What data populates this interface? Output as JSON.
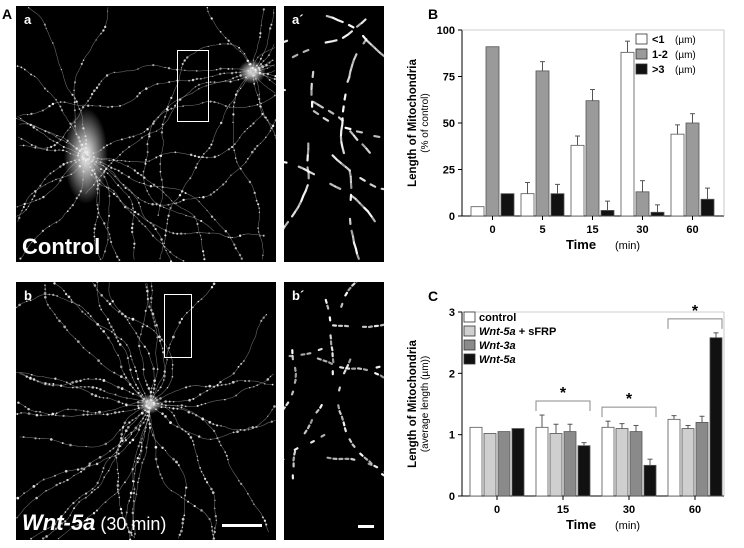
{
  "figure": {
    "panel_A_label": "A",
    "panel_B_label": "B",
    "panel_C_label": "C"
  },
  "micrographs": {
    "a": {
      "letter": "a",
      "condition": "Control"
    },
    "a_prime": {
      "letter": "a´"
    },
    "b": {
      "letter": "b",
      "condition_italic": "Wnt-5a",
      "condition_time": " (30 min)"
    },
    "b_prime": {
      "letter": "b´"
    }
  },
  "colors": {
    "white_bar": "#ffffff",
    "gray_bar": "#9a9a9a",
    "black_bar": "#111111",
    "light_gray_bar": "#cfcfcf",
    "mid_gray_bar": "#8a8a8a"
  },
  "chart_data": [
    {
      "panel": "B",
      "type": "bar",
      "ylabel_line1": "Length of Mitochondria",
      "ylabel_line2": "(% of control)",
      "xlabel": "Time",
      "xlabel_unit": "(min)",
      "categories": [
        "0",
        "5",
        "15",
        "30",
        "60"
      ],
      "ylim": [
        0,
        100
      ],
      "yticks": [
        "0",
        "25",
        "50",
        "75",
        "100"
      ],
      "legend_position": "top-right",
      "series": [
        {
          "name": "<1",
          "unit": "(µm)",
          "color": "#ffffff",
          "values": [
            5,
            12,
            38,
            88,
            44
          ],
          "errors": [
            0,
            6,
            5,
            6,
            5
          ]
        },
        {
          "name": "1-2",
          "unit": "(µm)",
          "color": "#9a9a9a",
          "values": [
            91,
            78,
            62,
            13,
            50
          ],
          "errors": [
            0,
            5,
            6,
            6,
            5
          ]
        },
        {
          "name": ">3",
          "unit": "(µm)",
          "color": "#111111",
          "values": [
            12,
            12,
            3,
            2,
            9
          ],
          "errors": [
            0,
            5,
            5,
            4,
            6
          ]
        }
      ]
    },
    {
      "panel": "C",
      "type": "bar",
      "ylabel_line1": "Length of Mitochondria",
      "ylabel_line2": "(average length (µm))",
      "xlabel": "Time",
      "xlabel_unit": "(min)",
      "categories": [
        "0",
        "15",
        "30",
        "60"
      ],
      "ylim": [
        0,
        3
      ],
      "yticks": [
        "0",
        "1",
        "2",
        "3"
      ],
      "legend_position": "top-left",
      "significance_marker": "*",
      "significant_categories": [
        "15",
        "30",
        "60"
      ],
      "series": [
        {
          "name": "control",
          "italic": false,
          "color": "#ffffff",
          "values": [
            1.12,
            1.12,
            1.12,
            1.25
          ],
          "errors": [
            0,
            0.2,
            0.1,
            0.06
          ]
        },
        {
          "name_italic": "Wnt-5a",
          "name_rest": " + sFRP",
          "name": "Wnt-5a + sFRP",
          "color": "#cfcfcf",
          "values": [
            1.02,
            1.02,
            1.1,
            1.1
          ],
          "errors": [
            0,
            0.15,
            0.08,
            0.05
          ]
        },
        {
          "name": "Wnt-3a",
          "italic": true,
          "color": "#8a8a8a",
          "values": [
            1.05,
            1.05,
            1.05,
            1.2
          ],
          "errors": [
            0,
            0.12,
            0.1,
            0.1
          ]
        },
        {
          "name": "Wnt-5a",
          "italic": true,
          "color": "#111111",
          "values": [
            1.1,
            0.82,
            0.5,
            2.58
          ],
          "errors": [
            0,
            0.05,
            0.1,
            0.08
          ]
        }
      ]
    }
  ]
}
